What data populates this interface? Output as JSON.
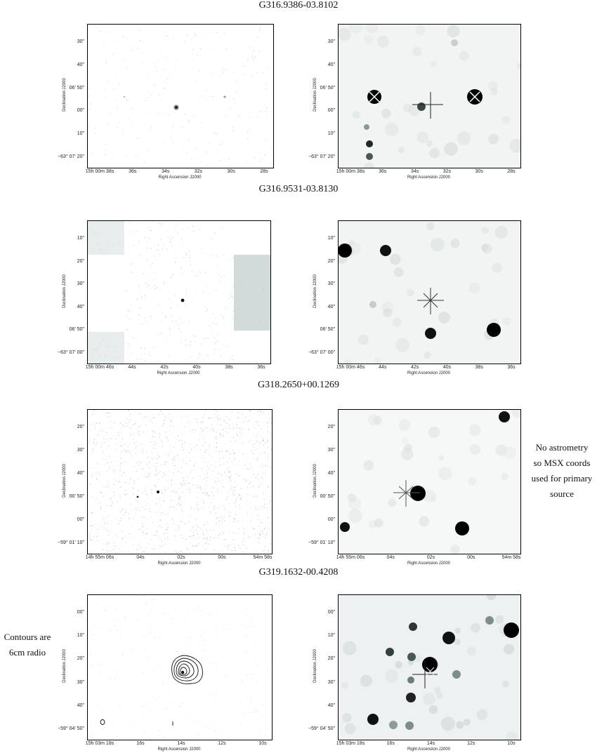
{
  "titles": [
    "G316.9386-03.8102",
    "G316.9531-03.8130",
    "G318.2650+00.1269",
    "G319.1632-00.4208"
  ],
  "axis": {
    "xlabel": "Right Ascension J2000",
    "ylabel": "Declination J2000"
  },
  "panels": [
    {
      "yticks": [
        "30\"",
        "40\"",
        "06' 50\"",
        "00\"",
        "10\"",
        "−63° 07' 20\""
      ],
      "xticks": [
        "15h 00m 38s",
        "36s",
        "34s",
        "32s",
        "30s",
        "28s"
      ],
      "right_xticks": [
        "15h 00m 38s",
        "36s",
        "34s",
        "32s",
        "30s",
        "28s"
      ]
    },
    {
      "yticks": [
        "10\"",
        "20\"",
        "30\"",
        "40\"",
        "06' 50\"",
        "−63° 07' 00\""
      ],
      "xticks": [
        "15h 00m 46s",
        "44s",
        "42s",
        "40s",
        "38s",
        "36s"
      ],
      "right_xticks": [
        "15h 00m 46s",
        "44s",
        "42s",
        "40s",
        "38s",
        "36s"
      ]
    },
    {
      "yticks": [
        "20\"",
        "30\"",
        "40\"",
        "00' 50\"",
        "00\"",
        "−59° 01' 10\""
      ],
      "xticks": [
        "14h 55m 06s",
        "04s",
        "02s",
        "00s",
        "54m 58s"
      ],
      "right_xticks": [
        "14h 55m 06s",
        "04s",
        "02s",
        "00s",
        "54m 58s"
      ]
    },
    {
      "yticks": [
        "00\"",
        "10\"",
        "20\"",
        "30\"",
        "40\"",
        "−59° 04' 50\""
      ],
      "xticks": [
        "15h 03m 18s",
        "16s",
        "14s",
        "12s",
        "10s"
      ],
      "right_xticks": [
        "15h 03m 18s",
        "16s",
        "14s",
        "12s",
        "10s"
      ]
    }
  ],
  "notes": {
    "astrometry": [
      "No astrometry",
      "so MSX coords",
      "used for primary",
      "source"
    ],
    "contours": [
      "Contours are",
      "6cm radio"
    ]
  }
}
